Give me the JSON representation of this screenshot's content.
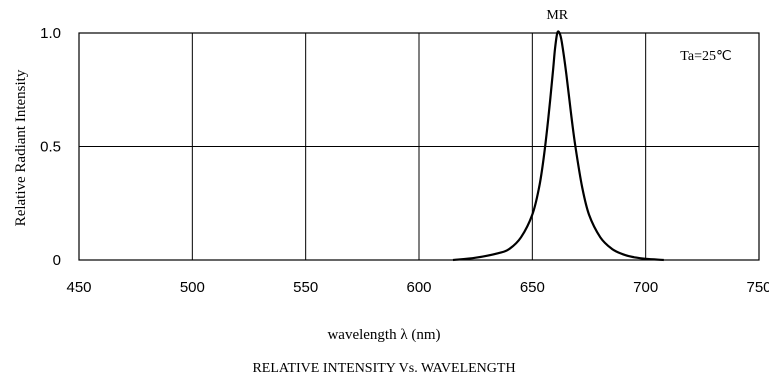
{
  "chart_data": {
    "type": "line",
    "title": "RELATIVE INTENSITY Vs. WAVELENGTH",
    "xlabel": "wavelength λ (nm)",
    "ylabel": "Relative Radiant Intensity",
    "xlim": [
      450,
      750
    ],
    "ylim": [
      0,
      1.0
    ],
    "x_ticks": [
      "450",
      "500",
      "550",
      "600",
      "650",
      "700",
      "750"
    ],
    "y_ticks": [
      "1.0",
      "0.5",
      "0"
    ],
    "grid": true,
    "series": [
      {
        "name": "MR",
        "x": [
          615,
          625,
          635,
          640,
          645,
          650,
          653,
          655,
          657,
          659,
          660,
          661,
          662,
          663,
          665,
          667,
          669,
          672,
          675,
          680,
          685,
          690,
          695,
          700,
          708
        ],
        "y": [
          0.0,
          0.01,
          0.03,
          0.05,
          0.1,
          0.2,
          0.32,
          0.45,
          0.62,
          0.82,
          0.93,
          1.0,
          1.0,
          0.96,
          0.82,
          0.65,
          0.5,
          0.32,
          0.2,
          0.1,
          0.05,
          0.025,
          0.012,
          0.005,
          0.0
        ]
      }
    ],
    "annotations": [
      "Ta=25℃"
    ]
  }
}
